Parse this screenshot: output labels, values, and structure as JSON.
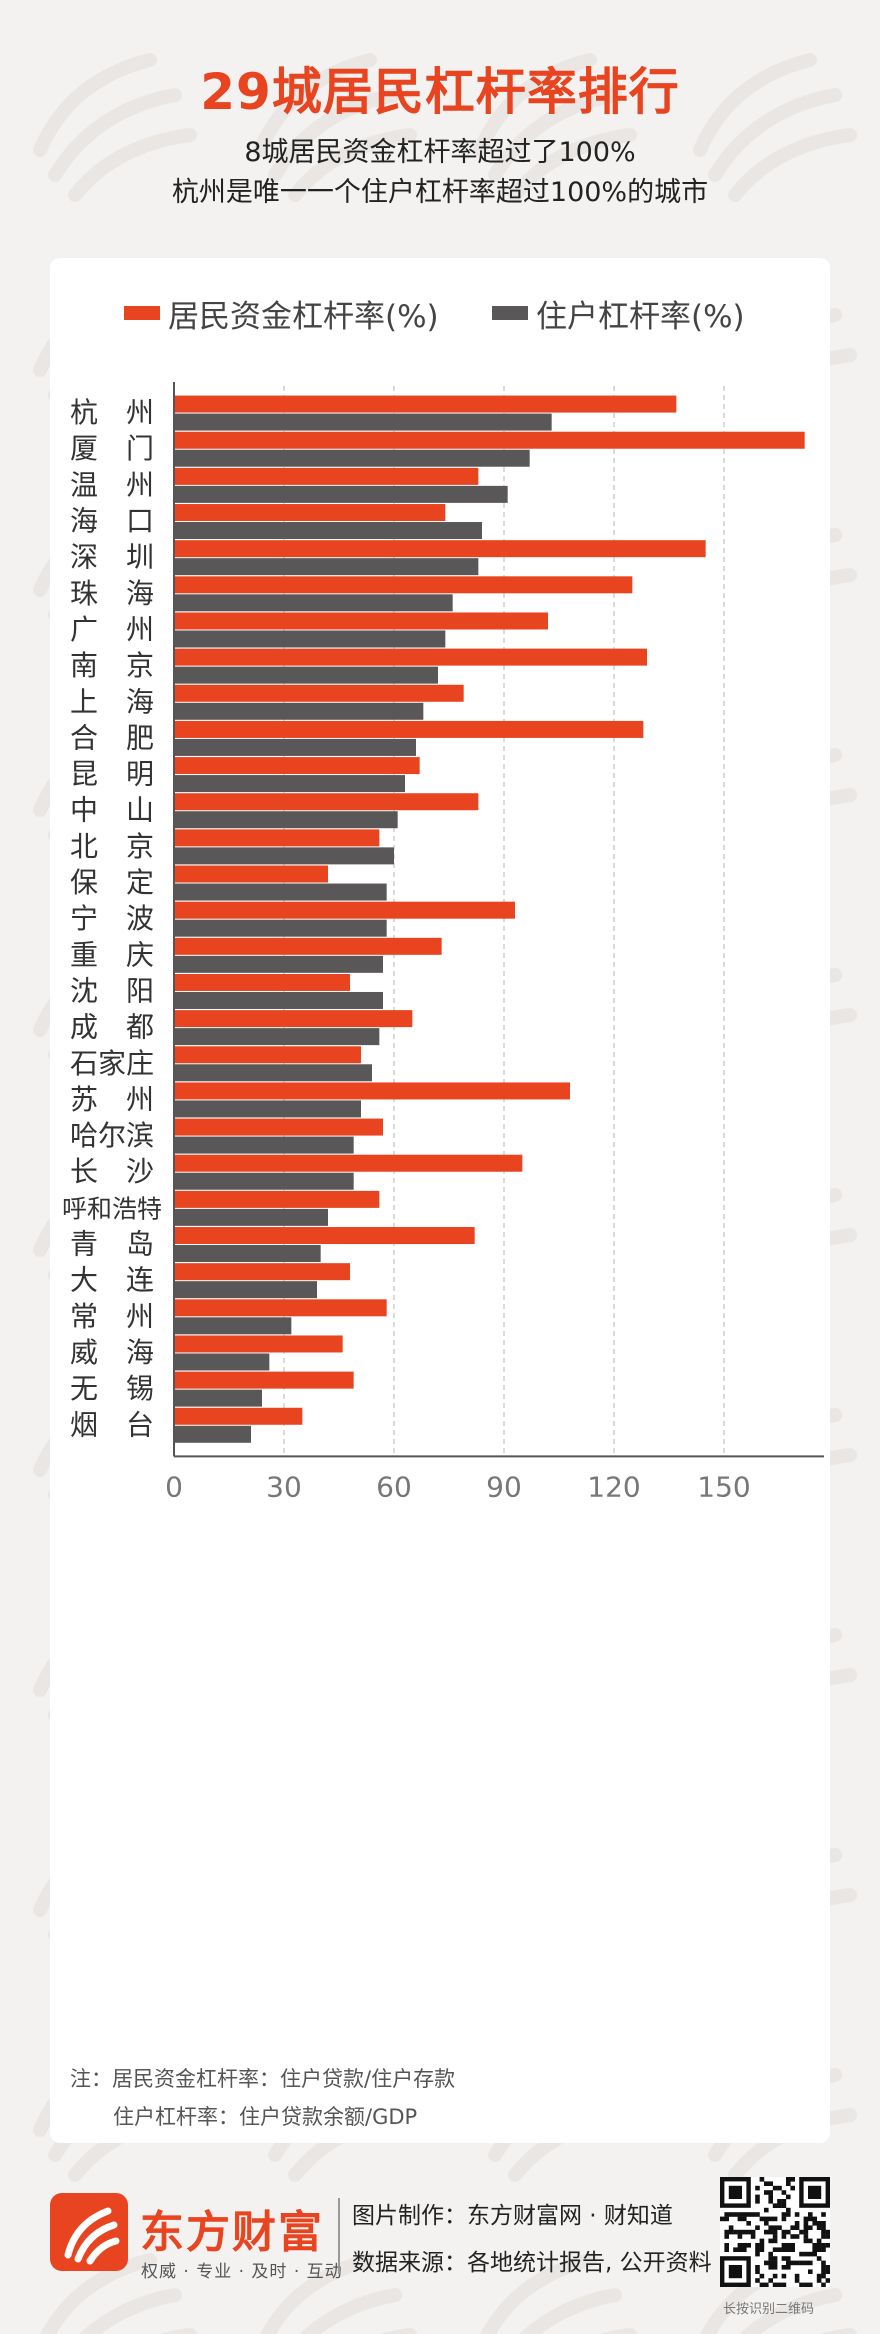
{
  "header": {
    "title": "29城居民杠杆率排行",
    "subtitle_1": "8城居民资金杠杆率超过了100%",
    "subtitle_2": "杭州是唯一一个住户杠杆率超过100%的城市"
  },
  "colors": {
    "series_1": "#e8441f",
    "series_2": "#595757",
    "title": "#e8441f"
  },
  "chart_data": {
    "type": "bar",
    "orientation": "horizontal",
    "title": "29城居民杠杆率排行",
    "categories": [
      "杭　州",
      "厦　门",
      "温　州",
      "海　口",
      "深　圳",
      "珠　海",
      "广　州",
      "南　京",
      "上　海",
      "合　肥",
      "昆　明",
      "中　山",
      "北　京",
      "保　定",
      "宁　波",
      "重　庆",
      "沈　阳",
      "成　都",
      "石家庄",
      "苏　州",
      "哈尔滨",
      "长　沙",
      "呼和浩特",
      "青　岛",
      "大　连",
      "常　州",
      "威　海",
      "无　锡",
      "烟　台"
    ],
    "series": [
      {
        "name": "居民资金杠杆率(%)",
        "color": "#e8441f",
        "values": [
          137,
          172,
          83,
          74,
          145,
          125,
          102,
          129,
          79,
          128,
          67,
          83,
          56,
          42,
          93,
          73,
          48,
          65,
          51,
          108,
          57,
          95,
          56,
          82,
          48,
          58,
          46,
          49,
          35
        ]
      },
      {
        "name": "住户杠杆率(%)",
        "color": "#595757",
        "values": [
          103,
          97,
          91,
          84,
          83,
          76,
          74,
          72,
          68,
          66,
          63,
          61,
          60,
          58,
          58,
          57,
          57,
          56,
          54,
          51,
          49,
          49,
          42,
          40,
          39,
          32,
          26,
          24,
          21
        ]
      }
    ],
    "xticks": [
      "0",
      "30",
      "60",
      "90",
      "120",
      "150"
    ],
    "xlim": [
      0,
      180
    ],
    "grid": true,
    "legend_position": "top"
  },
  "notes": {
    "line1": "注：居民资金杠杆率：住户贷款/住户存款",
    "line2": "住户杠杆率：住户贷款余额/GDP"
  },
  "footer": {
    "brand": "东方财富",
    "tagline": "权威 · 专业 · 及时 · 互动",
    "credit_1": "图片制作：东方财富网 · 财知道",
    "credit_2": "数据来源：各地统计报告, 公开资料",
    "qr_caption": "长按识别二维码"
  }
}
